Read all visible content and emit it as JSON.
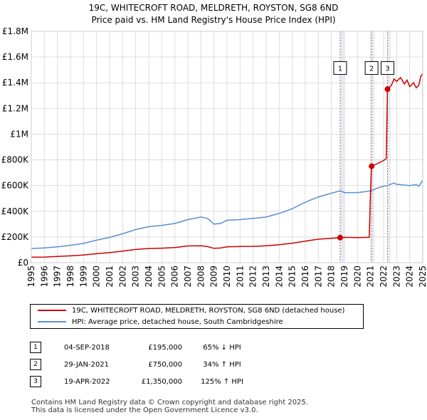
{
  "title_line1": "19C, WHITECROFT ROAD, MELDRETH, ROYSTON, SG8 6ND",
  "title_line2": "Price paid vs. HM Land Registry's House Price Index (HPI)",
  "chart_data": {
    "type": "line",
    "title": "19C, WHITECROFT ROAD, MELDRETH, ROYSTON, SG8 6ND — Price paid vs. HM Land Registry's House Price Index (HPI)",
    "xlim": [
      1995,
      2025
    ],
    "ylim": [
      0,
      1800000
    ],
    "y_ticks": [
      {
        "value": 0,
        "label": "£0"
      },
      {
        "value": 200000,
        "label": "£200K"
      },
      {
        "value": 400000,
        "label": "£400K"
      },
      {
        "value": 600000,
        "label": "£600K"
      },
      {
        "value": 800000,
        "label": "£800K"
      },
      {
        "value": 1000000,
        "label": "£1M"
      },
      {
        "value": 1200000,
        "label": "£1.2M"
      },
      {
        "value": 1400000,
        "label": "£1.4M"
      },
      {
        "value": 1600000,
        "label": "£1.6M"
      },
      {
        "value": 1800000,
        "label": "£1.8M"
      }
    ],
    "x_ticks": [
      "1995",
      "1996",
      "1997",
      "1998",
      "1999",
      "2000",
      "2001",
      "2002",
      "2003",
      "2004",
      "2005",
      "2006",
      "2007",
      "2008",
      "2009",
      "2010",
      "2011",
      "2012",
      "2013",
      "2014",
      "2015",
      "2016",
      "2017",
      "2018",
      "2019",
      "2020",
      "2021",
      "2022",
      "2023",
      "2024",
      "2025"
    ],
    "grid": true,
    "shaded_ranges": [
      [
        2018.67,
        2019.0
      ],
      [
        2021.08,
        2021.3
      ],
      [
        2022.3,
        2022.55
      ],
      [
        2024.95,
        2025.0
      ]
    ],
    "series": [
      {
        "name": "19C, WHITECROFT ROAD, MELDRETH, ROYSTON, SG8 6ND (detached house)",
        "color": "#cc0000",
        "points": [
          [
            1995.0,
            43000
          ],
          [
            1996.0,
            44000
          ],
          [
            1997.0,
            48000
          ],
          [
            1998.0,
            53000
          ],
          [
            1999.0,
            60000
          ],
          [
            2000.0,
            70000
          ],
          [
            2001.0,
            78000
          ],
          [
            2002.0,
            90000
          ],
          [
            2003.0,
            103000
          ],
          [
            2004.0,
            110000
          ],
          [
            2005.0,
            113000
          ],
          [
            2006.0,
            118000
          ],
          [
            2007.0,
            130000
          ],
          [
            2008.0,
            132000
          ],
          [
            2008.5,
            125000
          ],
          [
            2009.0,
            112000
          ],
          [
            2009.5,
            114000
          ],
          [
            2010.0,
            123000
          ],
          [
            2011.0,
            126000
          ],
          [
            2012.0,
            127000
          ],
          [
            2013.0,
            131000
          ],
          [
            2014.0,
            140000
          ],
          [
            2015.0,
            152000
          ],
          [
            2016.0,
            168000
          ],
          [
            2017.0,
            183000
          ],
          [
            2018.0,
            190000
          ],
          [
            2018.67,
            195000
          ],
          [
            2019.0,
            197000
          ],
          [
            2020.0,
            195000
          ],
          [
            2020.9,
            197000
          ],
          [
            2021.0,
            560000
          ],
          [
            2021.08,
            750000
          ],
          [
            2021.5,
            770000
          ],
          [
            2022.0,
            795000
          ],
          [
            2022.2,
            810000
          ],
          [
            2022.3,
            1350000
          ],
          [
            2022.6,
            1380000
          ],
          [
            2022.8,
            1430000
          ],
          [
            2023.0,
            1410000
          ],
          [
            2023.3,
            1440000
          ],
          [
            2023.6,
            1390000
          ],
          [
            2023.8,
            1420000
          ],
          [
            2024.0,
            1370000
          ],
          [
            2024.3,
            1400000
          ],
          [
            2024.5,
            1360000
          ],
          [
            2024.7,
            1380000
          ],
          [
            2024.85,
            1450000
          ],
          [
            2025.0,
            1470000
          ]
        ]
      },
      {
        "name": "HPI: Average price, detached house, South Cambridgeshire",
        "color": "#5b8ed6",
        "points": [
          [
            1995.0,
            110000
          ],
          [
            1996.0,
            115000
          ],
          [
            1997.0,
            123000
          ],
          [
            1998.0,
            135000
          ],
          [
            1999.0,
            150000
          ],
          [
            2000.0,
            175000
          ],
          [
            2001.0,
            197000
          ],
          [
            2002.0,
            225000
          ],
          [
            2003.0,
            258000
          ],
          [
            2004.0,
            280000
          ],
          [
            2005.0,
            290000
          ],
          [
            2006.0,
            305000
          ],
          [
            2007.0,
            335000
          ],
          [
            2008.0,
            355000
          ],
          [
            2008.5,
            345000
          ],
          [
            2009.0,
            300000
          ],
          [
            2009.5,
            305000
          ],
          [
            2010.0,
            330000
          ],
          [
            2011.0,
            335000
          ],
          [
            2012.0,
            345000
          ],
          [
            2013.0,
            355000
          ],
          [
            2014.0,
            383000
          ],
          [
            2015.0,
            420000
          ],
          [
            2016.0,
            470000
          ],
          [
            2017.0,
            512000
          ],
          [
            2018.0,
            540000
          ],
          [
            2018.67,
            560000
          ],
          [
            2019.0,
            545000
          ],
          [
            2020.0,
            545000
          ],
          [
            2021.08,
            560000
          ],
          [
            2021.5,
            580000
          ],
          [
            2022.0,
            595000
          ],
          [
            2022.3,
            600000
          ],
          [
            2022.8,
            620000
          ],
          [
            2023.0,
            610000
          ],
          [
            2023.5,
            605000
          ],
          [
            2024.0,
            600000
          ],
          [
            2024.5,
            608000
          ],
          [
            2024.7,
            595000
          ],
          [
            2025.0,
            640000
          ]
        ]
      }
    ],
    "sales": [
      {
        "label": "1",
        "x": 2018.67,
        "y": 195000
      },
      {
        "label": "2",
        "x": 2021.08,
        "y": 750000
      },
      {
        "label": "3",
        "x": 2022.3,
        "y": 1350000
      }
    ],
    "annotation_label_y": 1520000
  },
  "legend": {
    "property": "19C, WHITECROFT ROAD, MELDRETH, ROYSTON, SG8 6ND (detached house)",
    "hpi": "HPI: Average price, detached house, South Cambridgeshire"
  },
  "sales_table": [
    {
      "num": "1",
      "date": "04-SEP-2018",
      "price": "£195,000",
      "hpi": "65% ↓ HPI"
    },
    {
      "num": "2",
      "date": "29-JAN-2021",
      "price": "£750,000",
      "hpi": "34% ↑ HPI"
    },
    {
      "num": "3",
      "date": "19-APR-2022",
      "price": "£1,350,000",
      "hpi": "125% ↑ HPI"
    }
  ],
  "footer_line1": "Contains HM Land Registry data © Crown copyright and database right 2025.",
  "footer_line2": "This data is licensed under the Open Government Licence v3.0.",
  "colors": {
    "property_line": "#cc0000",
    "hpi_line": "#5b8ed6",
    "grid": "#dddddd",
    "shade": "#e6ecf7",
    "marker_line": "#d06060"
  }
}
